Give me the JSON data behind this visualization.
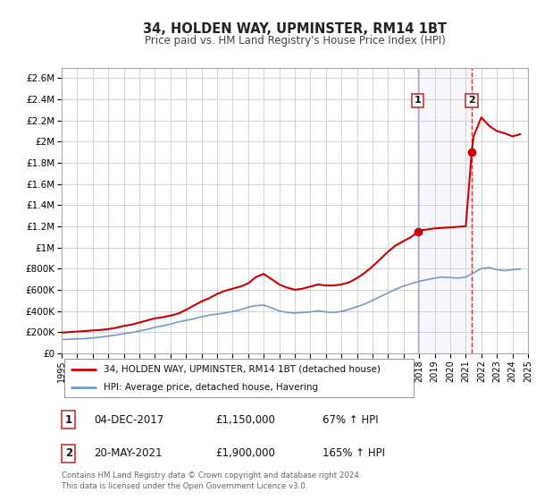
{
  "title": "34, HOLDEN WAY, UPMINSTER, RM14 1BT",
  "subtitle": "Price paid vs. HM Land Registry's House Price Index (HPI)",
  "background_color": "#ffffff",
  "plot_bg_color": "#ffffff",
  "grid_color": "#cccccc",
  "ylim": [
    0,
    2700000
  ],
  "yticks": [
    0,
    200000,
    400000,
    600000,
    800000,
    1000000,
    1200000,
    1400000,
    1600000,
    1800000,
    2000000,
    2200000,
    2400000,
    2600000
  ],
  "ytick_labels": [
    "£0",
    "£200K",
    "£400K",
    "£600K",
    "£800K",
    "£1M",
    "£1.2M",
    "£1.4M",
    "£1.6M",
    "£1.8M",
    "£2M",
    "£2.2M",
    "£2.4M",
    "£2.6M"
  ],
  "xlim": [
    1995,
    2025
  ],
  "xticks": [
    1995,
    1996,
    1997,
    1998,
    1999,
    2000,
    2001,
    2002,
    2003,
    2004,
    2005,
    2006,
    2007,
    2008,
    2009,
    2010,
    2011,
    2012,
    2013,
    2014,
    2015,
    2016,
    2017,
    2018,
    2019,
    2020,
    2021,
    2022,
    2023,
    2024,
    2025
  ],
  "red_line_color": "#cc0000",
  "blue_line_color": "#7799cc",
  "vline1_color": "#aaaacc",
  "vline2_color": "#cc3333",
  "marker_color": "#cc0000",
  "sale1_x": 2017.92,
  "sale1_y": 1150000,
  "sale2_x": 2021.38,
  "sale2_y": 1900000,
  "legend_label_red": "34, HOLDEN WAY, UPMINSTER, RM14 1BT (detached house)",
  "legend_label_blue": "HPI: Average price, detached house, Havering",
  "annotation1_label": "1",
  "annotation2_label": "2",
  "table_row1": [
    "1",
    "04-DEC-2017",
    "£1,150,000",
    "67% ↑ HPI"
  ],
  "table_row2": [
    "2",
    "20-MAY-2021",
    "£1,900,000",
    "165% ↑ HPI"
  ],
  "footnote": "Contains HM Land Registry data © Crown copyright and database right 2024.\nThis data is licensed under the Open Government Licence v3.0.",
  "red_x": [
    1995.0,
    1995.5,
    1996.0,
    1996.5,
    1997.0,
    1997.5,
    1998.0,
    1998.5,
    1999.0,
    1999.5,
    2000.0,
    2000.5,
    2001.0,
    2001.5,
    2002.0,
    2002.5,
    2003.0,
    2003.5,
    2004.0,
    2004.5,
    2005.0,
    2005.5,
    2006.0,
    2006.5,
    2007.0,
    2007.5,
    2008.0,
    2008.5,
    2009.0,
    2009.5,
    2010.0,
    2010.5,
    2011.0,
    2011.5,
    2012.0,
    2012.5,
    2013.0,
    2013.5,
    2014.0,
    2014.5,
    2015.0,
    2015.5,
    2016.0,
    2016.5,
    2017.0,
    2017.5,
    2017.92,
    2018.0,
    2018.5,
    2019.0,
    2019.5,
    2020.0,
    2020.5,
    2021.0,
    2021.38,
    2021.5,
    2022.0,
    2022.5,
    2023.0,
    2023.5,
    2024.0,
    2024.5
  ],
  "red_y": [
    195000,
    200000,
    205000,
    210000,
    215000,
    220000,
    228000,
    240000,
    258000,
    270000,
    290000,
    310000,
    330000,
    340000,
    355000,
    375000,
    410000,
    450000,
    490000,
    520000,
    560000,
    590000,
    610000,
    630000,
    660000,
    720000,
    750000,
    700000,
    650000,
    620000,
    600000,
    610000,
    630000,
    650000,
    640000,
    640000,
    650000,
    670000,
    710000,
    760000,
    820000,
    890000,
    960000,
    1020000,
    1060000,
    1100000,
    1150000,
    1160000,
    1170000,
    1180000,
    1185000,
    1190000,
    1195000,
    1200000,
    1900000,
    2050000,
    2230000,
    2150000,
    2100000,
    2080000,
    2050000,
    2070000
  ],
  "blue_x": [
    1995.0,
    1995.5,
    1996.0,
    1996.5,
    1997.0,
    1997.5,
    1998.0,
    1998.5,
    1999.0,
    1999.5,
    2000.0,
    2000.5,
    2001.0,
    2001.5,
    2002.0,
    2002.5,
    2003.0,
    2003.5,
    2004.0,
    2004.5,
    2005.0,
    2005.5,
    2006.0,
    2006.5,
    2007.0,
    2007.5,
    2008.0,
    2008.5,
    2009.0,
    2009.5,
    2010.0,
    2010.5,
    2011.0,
    2011.5,
    2012.0,
    2012.5,
    2013.0,
    2013.5,
    2014.0,
    2014.5,
    2015.0,
    2015.5,
    2016.0,
    2016.5,
    2017.0,
    2017.5,
    2018.0,
    2018.5,
    2019.0,
    2019.5,
    2020.0,
    2020.5,
    2021.0,
    2021.5,
    2022.0,
    2022.5,
    2023.0,
    2023.5,
    2024.0,
    2024.5
  ],
  "blue_y": [
    130000,
    132000,
    135000,
    138000,
    145000,
    152000,
    162000,
    172000,
    185000,
    195000,
    210000,
    225000,
    245000,
    258000,
    275000,
    295000,
    310000,
    325000,
    345000,
    360000,
    370000,
    380000,
    395000,
    410000,
    435000,
    450000,
    455000,
    430000,
    400000,
    385000,
    380000,
    385000,
    390000,
    400000,
    390000,
    385000,
    395000,
    415000,
    440000,
    465000,
    500000,
    535000,
    570000,
    605000,
    635000,
    658000,
    680000,
    695000,
    710000,
    720000,
    715000,
    710000,
    720000,
    760000,
    800000,
    810000,
    790000,
    780000,
    790000,
    795000
  ]
}
